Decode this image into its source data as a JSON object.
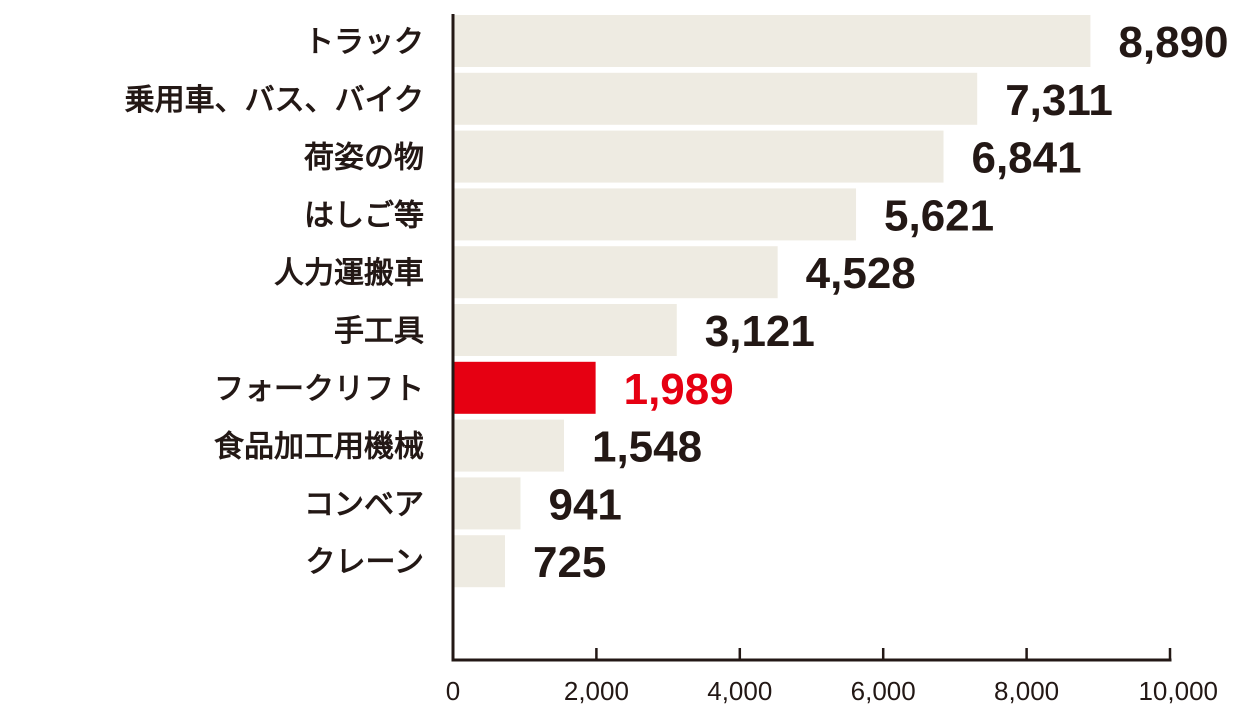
{
  "chart_data": {
    "type": "bar",
    "orientation": "horizontal",
    "categories": [
      "トラック",
      "乗用車、バス、バイク",
      "荷姿の物",
      "はしご等",
      "人力運搬車",
      "手工具",
      "フォークリフト",
      "食品加工用機械",
      "コンベア",
      "クレーン"
    ],
    "values": [
      8890,
      7311,
      6841,
      5621,
      4528,
      3121,
      1989,
      1548,
      941,
      725
    ],
    "value_labels": [
      "8,890",
      "7,311",
      "6,841",
      "5,621",
      "4,528",
      "3,121",
      "1,989",
      "1,548",
      "941",
      "725"
    ],
    "highlight_category": "フォークリフト",
    "xlim": [
      0,
      10000
    ],
    "x_ticks": [
      0,
      2000,
      4000,
      6000,
      8000,
      10000
    ],
    "x_tick_labels": [
      "0",
      "2,000",
      "4,000",
      "6,000",
      "8,000",
      "10,000"
    ],
    "title": "",
    "xlabel": "",
    "ylabel": "",
    "grid": false,
    "legend": "none",
    "colors": {
      "bar": "#eeebe2",
      "highlight_bar": "#e60012",
      "highlight_text": "#e60012",
      "text": "#231815",
      "axis": "#231815"
    }
  }
}
